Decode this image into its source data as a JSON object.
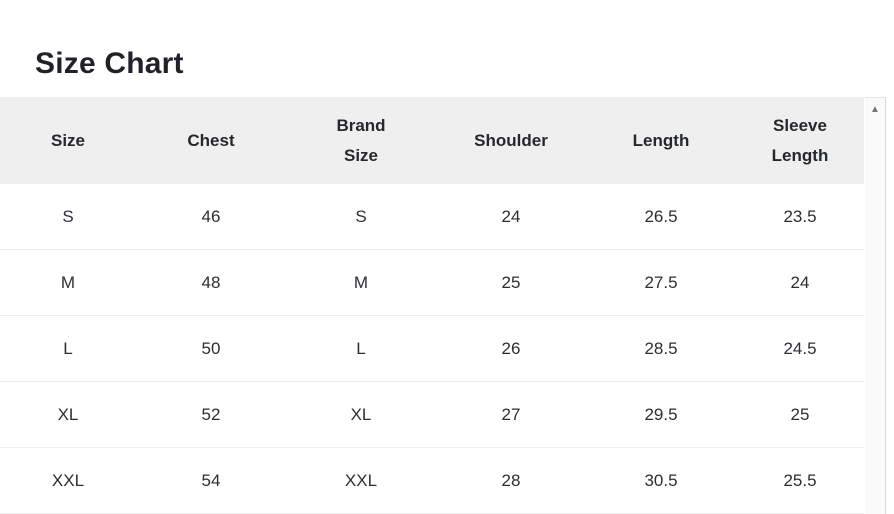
{
  "page": {
    "title": "Size Chart"
  },
  "size_chart": {
    "columns": [
      {
        "key": "size",
        "label": "Size"
      },
      {
        "key": "chest",
        "label": "Chest"
      },
      {
        "key": "brand_size",
        "label": "Brand Size"
      },
      {
        "key": "shoulder",
        "label": "Shoulder"
      },
      {
        "key": "length",
        "label": "Length"
      },
      {
        "key": "sleeve_length",
        "label": "Sleeve Length"
      }
    ],
    "rows": [
      {
        "size": "S",
        "chest": "46",
        "brand_size": "S",
        "shoulder": "24",
        "length": "26.5",
        "sleeve_length": "23.5"
      },
      {
        "size": "M",
        "chest": "48",
        "brand_size": "M",
        "shoulder": "25",
        "length": "27.5",
        "sleeve_length": "24"
      },
      {
        "size": "L",
        "chest": "50",
        "brand_size": "L",
        "shoulder": "26",
        "length": "28.5",
        "sleeve_length": "24.5"
      },
      {
        "size": "XL",
        "chest": "52",
        "brand_size": "XL",
        "shoulder": "27",
        "length": "29.5",
        "sleeve_length": "25"
      },
      {
        "size": "XXL",
        "chest": "54",
        "brand_size": "XXL",
        "shoulder": "28",
        "length": "30.5",
        "sleeve_length": "25.5"
      }
    ]
  },
  "scrollbar": {
    "up_arrow_glyph": "▲"
  },
  "colors": {
    "header_bg": "#efefef",
    "row_divider": "#ededed",
    "text": "#24292e",
    "title": "#1f2329",
    "scrollbar_track": "#fafafa",
    "scrollbar_arrow": "#757575"
  }
}
